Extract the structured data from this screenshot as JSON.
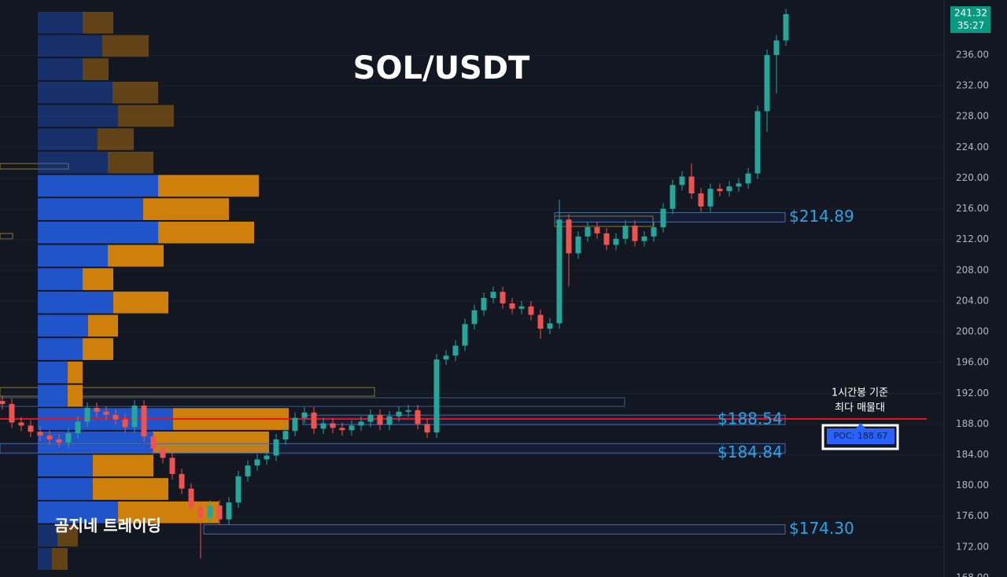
{
  "chart_data": {
    "type": "candlestick",
    "title": "SOL/USDT",
    "watermark": "곰지네 트레이딩",
    "ylim": [
      168.1,
      243.16
    ],
    "yticks": [
      {
        "value": 168,
        "label": "168.00"
      },
      {
        "value": 172,
        "label": "172.00"
      },
      {
        "value": 176,
        "label": "176.00"
      },
      {
        "value": 180,
        "label": "180.00"
      },
      {
        "value": 184,
        "label": "184.00"
      },
      {
        "value": 188,
        "label": "188.00"
      },
      {
        "value": 192,
        "label": "192.00"
      },
      {
        "value": 196,
        "label": "196.00"
      },
      {
        "value": 200,
        "label": "200.00"
      },
      {
        "value": 204,
        "label": "204.00"
      },
      {
        "value": 208,
        "label": "208.00"
      },
      {
        "value": 212,
        "label": "212.00"
      },
      {
        "value": 216,
        "label": "216.00"
      },
      {
        "value": 220,
        "label": "220.00"
      },
      {
        "value": 224,
        "label": "224.00"
      },
      {
        "value": 228,
        "label": "228.00"
      },
      {
        "value": 232,
        "label": "232.00"
      },
      {
        "value": 236,
        "label": "236.00"
      }
    ],
    "up_color": "#26a69a",
    "down_color": "#ef5350",
    "open": [
      191.0,
      190.6,
      188.2,
      187.8,
      187.0,
      186.5,
      186.0,
      185.6,
      186.8,
      188.3,
      190.1,
      189.6,
      189.2,
      188.6,
      187.6,
      190.4,
      186.4,
      184.8,
      183.6,
      181.5,
      179.6,
      177.2,
      175.8,
      177.4,
      175.6,
      177.8,
      181.2,
      182.6,
      183.4,
      183.9,
      186.0,
      187.1,
      188.8,
      189.5,
      187.4,
      188.1,
      187.5,
      187.2,
      187.8,
      188.3,
      189.2,
      187.9,
      189.0,
      189.6,
      189.8,
      188.0,
      186.9,
      196.4,
      196.9,
      198.2,
      201.0,
      202.8,
      204.4,
      205.2,
      203.7,
      203.0,
      203.3,
      202.2,
      200.4,
      201.1,
      214.6,
      210.2,
      212.4,
      213.6,
      212.8,
      211.3,
      212.1,
      213.8,
      211.8,
      212.4,
      213.6,
      216.0,
      219.1,
      220.2,
      218.0,
      216.3,
      218.6,
      218.3,
      218.9,
      219.3,
      220.6,
      228.7,
      236.0,
      237.9
    ],
    "high": [
      191.7,
      191.3,
      188.9,
      188.5,
      187.7,
      187.2,
      186.7,
      187.5,
      189.0,
      190.8,
      190.8,
      190.3,
      189.9,
      189.3,
      191.1,
      191.1,
      187.1,
      185.5,
      184.3,
      182.2,
      180.3,
      177.9,
      178.1,
      178.1,
      178.5,
      181.9,
      183.3,
      184.1,
      184.6,
      186.7,
      187.8,
      189.5,
      190.2,
      190.2,
      188.8,
      188.8,
      188.2,
      188.5,
      189.0,
      189.9,
      189.9,
      189.7,
      190.3,
      190.5,
      190.5,
      188.7,
      197.1,
      197.6,
      198.9,
      201.7,
      203.5,
      205.1,
      205.9,
      205.9,
      204.4,
      204.0,
      204.0,
      202.9,
      201.8,
      217.2,
      215.3,
      213.1,
      214.3,
      214.3,
      213.5,
      212.8,
      214.5,
      214.5,
      213.1,
      214.3,
      216.7,
      219.8,
      220.9,
      221.9,
      218.7,
      219.3,
      219.3,
      219.6,
      220.0,
      221.3,
      229.4,
      236.7,
      238.6,
      242.0
    ],
    "low": [
      189.9,
      187.5,
      187.1,
      186.3,
      185.8,
      185.3,
      184.9,
      184.9,
      186.1,
      187.6,
      188.9,
      188.5,
      187.9,
      186.9,
      186.9,
      185.7,
      184.1,
      182.9,
      180.8,
      178.9,
      176.5,
      170.5,
      175.1,
      174.9,
      174.9,
      177.1,
      180.5,
      181.9,
      182.7,
      183.2,
      185.3,
      186.4,
      188.1,
      186.7,
      186.7,
      186.8,
      186.5,
      186.5,
      187.1,
      187.6,
      187.2,
      187.2,
      188.3,
      188.9,
      187.3,
      186.2,
      186.2,
      195.7,
      196.2,
      197.5,
      200.3,
      202.1,
      203.7,
      203.0,
      202.3,
      202.3,
      201.5,
      199.1,
      199.7,
      200.4,
      205.9,
      209.5,
      211.7,
      212.1,
      210.6,
      210.6,
      211.4,
      211.1,
      211.1,
      211.7,
      212.9,
      215.3,
      218.4,
      217.3,
      215.6,
      215.6,
      217.6,
      217.6,
      218.2,
      218.6,
      219.9,
      226.0,
      231.0,
      237.2
    ],
    "close": [
      190.6,
      188.2,
      187.8,
      187.0,
      186.5,
      186.0,
      185.6,
      186.8,
      188.3,
      190.1,
      189.6,
      189.2,
      188.6,
      187.6,
      190.4,
      186.4,
      184.8,
      183.6,
      181.5,
      179.6,
      177.2,
      175.8,
      177.4,
      175.6,
      177.8,
      181.2,
      182.6,
      183.4,
      183.9,
      186.0,
      187.1,
      188.8,
      189.5,
      187.4,
      188.1,
      187.5,
      187.2,
      187.8,
      188.3,
      189.2,
      187.9,
      189.0,
      189.6,
      189.8,
      188.0,
      186.9,
      196.4,
      196.9,
      198.2,
      201.0,
      202.8,
      204.4,
      205.2,
      203.7,
      203.0,
      203.3,
      202.2,
      200.4,
      201.1,
      214.6,
      210.2,
      212.4,
      213.6,
      212.8,
      211.3,
      212.1,
      213.8,
      211.8,
      212.4,
      213.6,
      216.0,
      219.1,
      220.2,
      218.0,
      216.3,
      218.6,
      218.3,
      218.9,
      219.3,
      220.6,
      228.7,
      236.0,
      237.9,
      241.32
    ],
    "last_price": {
      "value": 241.32,
      "label": "241.32"
    },
    "countdown": "35:27",
    "volume_profile": {
      "bins": [
        241.73,
        238.7,
        235.67,
        232.63,
        229.6,
        226.57,
        223.53,
        220.5,
        217.47,
        214.43,
        211.4,
        208.37,
        205.33,
        202.3,
        199.27,
        196.23,
        193.2,
        190.17,
        187.13,
        184.1,
        181.07,
        178.03,
        175.0,
        171.97,
        168.93
      ],
      "series": [
        {
          "name": "buy",
          "color": "#2157d5",
          "values": [
            57,
            82,
            57,
            95,
            102,
            76,
            89,
            153,
            134,
            153,
            89,
            57,
            96,
            64,
            57,
            38,
            38,
            172,
            147,
            70,
            70,
            102,
            25,
            18
          ]
        },
        {
          "name": "sell",
          "color": "#d9860b",
          "values": [
            39,
            59,
            33,
            58,
            71,
            46,
            58,
            128,
            109,
            122,
            71,
            39,
            70,
            38,
            39,
            19,
            19,
            147,
            147,
            77,
            96,
            128,
            26,
            20
          ]
        }
      ],
      "value_area": [
        175.0,
        220.5
      ]
    },
    "levels": [
      {
        "value": 214.89,
        "label": "$214.89"
      },
      {
        "value": 188.54,
        "label": "$188.54"
      },
      {
        "value": 184.84,
        "label": "$184.84"
      },
      {
        "value": 174.3,
        "label": "$174.30"
      }
    ],
    "poc": {
      "value": 188.67,
      "label": "POC: 188.67",
      "color": "#e3141e"
    },
    "annotation": [
      "1시간봉 기준",
      "최다 매물대"
    ]
  }
}
